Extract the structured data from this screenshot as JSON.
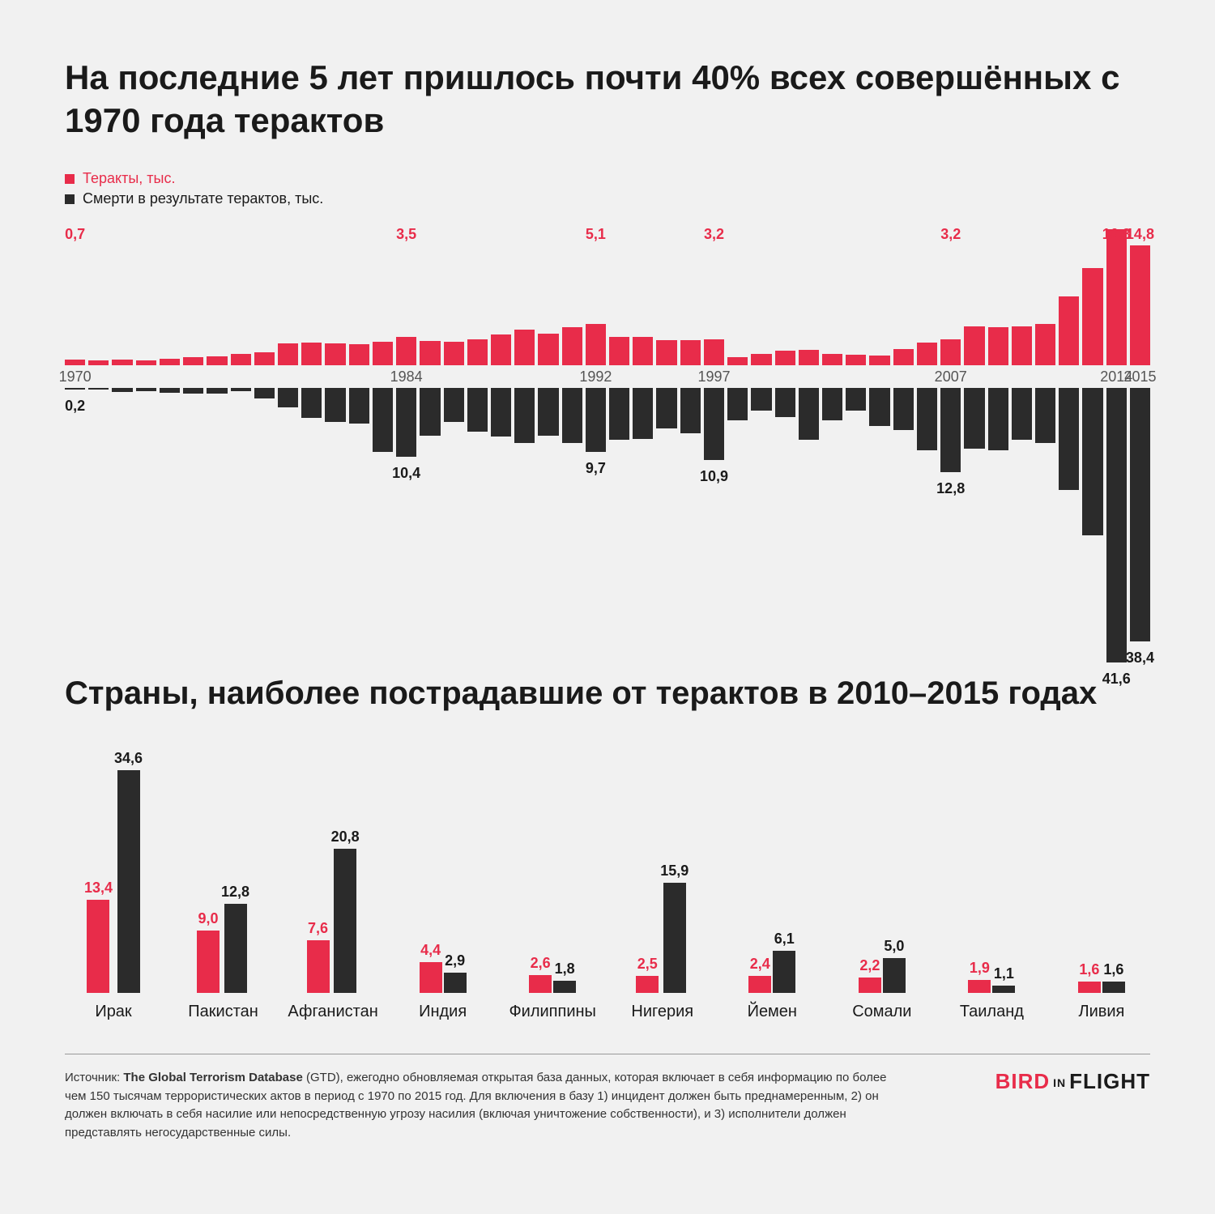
{
  "colors": {
    "attacks": "#e82c4a",
    "deaths": "#2b2b2b",
    "background": "#f1f1f1",
    "text": "#1a1a1a"
  },
  "title": "На последние 5 лет пришлось почти 40% всех совершённых с 1970 года терактов",
  "legend": {
    "attacks": "Теракты, тыс.",
    "deaths": "Смерти в результате терактов, тыс."
  },
  "timeline": {
    "type": "diverging-bar",
    "top_max": 17,
    "bot_max": 42,
    "year_labels": [
      1970,
      1984,
      1992,
      1997,
      2007,
      2014,
      2015
    ],
    "top_callouts": {
      "1970": "0,7",
      "1984": "3,5",
      "1992": "5,1",
      "1997": "3,2",
      "2007": "3,2",
      "2014": "16,8",
      "2015": "14,8"
    },
    "bot_callouts": {
      "1970": "0,2",
      "1984": "10,4",
      "1992": "9,7",
      "1997": "10,9",
      "2007": "12,8",
      "2014": "41,6",
      "2015": "38,4"
    },
    "years": [
      1970,
      1971,
      1972,
      1973,
      1974,
      1975,
      1976,
      1977,
      1978,
      1979,
      1980,
      1981,
      1982,
      1983,
      1984,
      1985,
      1986,
      1987,
      1988,
      1989,
      1990,
      1991,
      1992,
      1993,
      1994,
      1995,
      1996,
      1997,
      1998,
      1999,
      2000,
      2001,
      2002,
      2003,
      2004,
      2005,
      2006,
      2007,
      2008,
      2009,
      2010,
      2011,
      2012,
      2013,
      2014,
      2015
    ],
    "attacks": [
      0.7,
      0.6,
      0.7,
      0.6,
      0.8,
      1.0,
      1.1,
      1.4,
      1.6,
      2.7,
      2.8,
      2.7,
      2.6,
      2.9,
      3.5,
      3.0,
      2.9,
      3.2,
      3.8,
      4.4,
      3.9,
      4.7,
      5.1,
      3.5,
      3.5,
      3.1,
      3.1,
      3.2,
      1.0,
      1.4,
      1.8,
      1.9,
      1.4,
      1.3,
      1.2,
      2.0,
      2.8,
      3.2,
      4.8,
      4.7,
      4.8,
      5.1,
      8.5,
      12.0,
      16.8,
      14.8
    ],
    "deaths": [
      0.2,
      0.2,
      0.6,
      0.5,
      0.7,
      0.8,
      0.8,
      0.5,
      1.6,
      2.9,
      4.6,
      5.2,
      5.4,
      9.7,
      10.4,
      7.3,
      5.1,
      6.6,
      7.4,
      8.3,
      7.3,
      8.4,
      9.7,
      7.8,
      7.7,
      6.1,
      6.9,
      10.9,
      4.9,
      3.4,
      4.4,
      7.8,
      4.9,
      3.4,
      5.8,
      6.4,
      9.5,
      12.8,
      9.2,
      9.4,
      7.9,
      8.3,
      15.5,
      22.3,
      41.6,
      38.4
    ]
  },
  "subtitle": "Страны, наиболее пострадавшие от терактов в 2010–2015 годах",
  "countries": {
    "type": "grouped-bar",
    "max": 35,
    "items": [
      {
        "name": "Ирак",
        "attacks": 13.4,
        "deaths": 34.6,
        "attacks_label": "13,4",
        "deaths_label": "34,6"
      },
      {
        "name": "Пакистан",
        "attacks": 9.0,
        "deaths": 12.8,
        "attacks_label": "9,0",
        "deaths_label": "12,8"
      },
      {
        "name": "Афганистан",
        "attacks": 7.6,
        "deaths": 20.8,
        "attacks_label": "7,6",
        "deaths_label": "20,8"
      },
      {
        "name": "Индия",
        "attacks": 4.4,
        "deaths": 2.9,
        "attacks_label": "4,4",
        "deaths_label": "2,9"
      },
      {
        "name": "Филиппины",
        "attacks": 2.6,
        "deaths": 1.8,
        "attacks_label": "2,6",
        "deaths_label": "1,8"
      },
      {
        "name": "Нигерия",
        "attacks": 2.5,
        "deaths": 15.9,
        "attacks_label": "2,5",
        "deaths_label": "15,9"
      },
      {
        "name": "Йемен",
        "attacks": 2.4,
        "deaths": 6.1,
        "attacks_label": "2,4",
        "deaths_label": "6,1"
      },
      {
        "name": "Сомали",
        "attacks": 2.2,
        "deaths": 5.0,
        "attacks_label": "2,2",
        "deaths_label": "5,0"
      },
      {
        "name": "Таиланд",
        "attacks": 1.9,
        "deaths": 1.1,
        "attacks_label": "1,9",
        "deaths_label": "1,1"
      },
      {
        "name": "Ливия",
        "attacks": 1.6,
        "deaths": 1.6,
        "attacks_label": "1,6",
        "deaths_label": "1,6"
      }
    ]
  },
  "source": {
    "prefix": "Источник: ",
    "name": "The Global Terrorism Database",
    "suffix": " (GTD), ежегодно обновляемая открытая база данных, которая включает в себя информацию по более чем 150 тысячам террористических актов в период с 1970 по 2015 год. Для включения в базу 1) инцидент должен быть преднамеренным, 2) он должен включать в себя насилие или непосредственную угрозу насилия (включая уничтожение собственности), и 3) исполнители должен представлять негосударственные силы."
  },
  "brand": {
    "bird": "BIRD",
    "in": "IN",
    "flight": "FLIGHT"
  }
}
